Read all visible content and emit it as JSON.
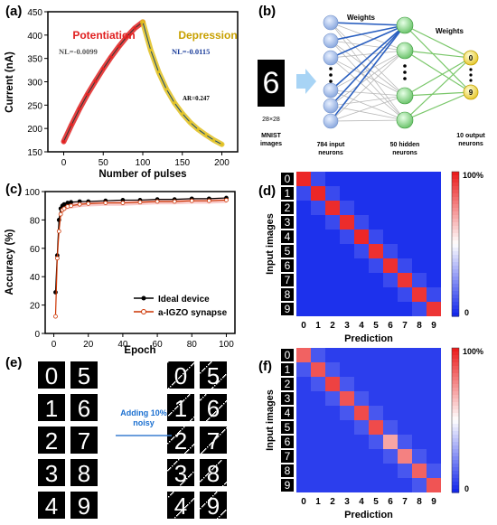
{
  "panels": {
    "a": "(a)",
    "b": "(b)",
    "c": "(c)",
    "d": "(d)",
    "e": "(e)",
    "f": "(f)"
  },
  "chart_data": [
    {
      "id": "a",
      "type": "line",
      "xlabel": "Number of pulses",
      "ylabel": "Current (nA)",
      "xlim": [
        -20,
        220
      ],
      "ylim": [
        150,
        450
      ],
      "xticks": [
        "0",
        "50",
        "100",
        "150",
        "200"
      ],
      "yticks": [
        "150",
        "200",
        "250",
        "300",
        "350",
        "400",
        "450"
      ],
      "annotations": {
        "potentiation": "Potentiation",
        "depression": "Depression",
        "nl_pot": "NL=-0.0099",
        "nl_dep": "NL=-0.0115",
        "ar": "AR=0.247"
      },
      "series": [
        {
          "name": "Potentiation",
          "x": [
            0,
            10,
            20,
            30,
            40,
            50,
            60,
            70,
            80,
            90,
            100
          ],
          "y": [
            172,
            208,
            242,
            273,
            301,
            328,
            353,
            376,
            397,
            415,
            428
          ],
          "color": "#e02020"
        },
        {
          "name": "Depression",
          "x": [
            100,
            110,
            120,
            130,
            140,
            150,
            160,
            170,
            180,
            190,
            200
          ],
          "y": [
            428,
            368,
            321,
            284,
            255,
            232,
            213,
            198,
            186,
            175,
            166
          ],
          "color": "#e0c020"
        }
      ]
    },
    {
      "id": "c",
      "type": "line",
      "xlabel": "Epoch",
      "ylabel": "Accuracy (%)",
      "xlim": [
        -5,
        105
      ],
      "ylim": [
        0,
        100
      ],
      "xticks": [
        "0",
        "20",
        "40",
        "60",
        "80",
        "100"
      ],
      "yticks": [
        "0",
        "20",
        "40",
        "60",
        "80",
        "100"
      ],
      "series": [
        {
          "name": "Ideal device",
          "color": "#000000",
          "x": [
            1,
            2,
            3,
            4,
            5,
            6,
            8,
            10,
            15,
            20,
            30,
            40,
            50,
            60,
            70,
            80,
            90,
            100
          ],
          "y": [
            29,
            55,
            80,
            88,
            90,
            91,
            92,
            92.5,
            93,
            93,
            93.5,
            94,
            94,
            94.5,
            94.5,
            95,
            95,
            95.5
          ]
        },
        {
          "name": "a-IGZO synapse",
          "color": "#cc3300",
          "x": [
            1,
            2,
            3,
            4,
            5,
            6,
            8,
            10,
            15,
            20,
            30,
            40,
            50,
            60,
            70,
            80,
            90,
            100
          ],
          "y": [
            12,
            53,
            72,
            84,
            87,
            88,
            89.5,
            90,
            91,
            91.5,
            92,
            92,
            92.5,
            93,
            93,
            93.5,
            93.5,
            94
          ]
        }
      ]
    },
    {
      "id": "d",
      "type": "heatmap",
      "xlabel": "Prediction",
      "ylabel": "Input images",
      "xticks": [
        "0",
        "1",
        "2",
        "3",
        "4",
        "5",
        "6",
        "7",
        "8",
        "9"
      ],
      "yticks": [
        "0",
        "1",
        "2",
        "3",
        "4",
        "5",
        "6",
        "7",
        "8",
        "9"
      ],
      "colorbar": {
        "max": "100%",
        "min": "0"
      },
      "diagonal": [
        0.98,
        0.98,
        0.97,
        0.97,
        0.98,
        0.96,
        0.96,
        0.95,
        0.95,
        0.95
      ],
      "offdiag": 0.02
    },
    {
      "id": "f",
      "type": "heatmap",
      "xlabel": "Prediction",
      "ylabel": "Input images",
      "xticks": [
        "0",
        "1",
        "2",
        "3",
        "4",
        "5",
        "6",
        "7",
        "8",
        "9"
      ],
      "yticks": [
        "0",
        "1",
        "2",
        "3",
        "4",
        "5",
        "6",
        "7",
        "8",
        "9"
      ],
      "colorbar": {
        "max": "100%",
        "min": "0"
      },
      "diagonal": [
        0.85,
        0.88,
        0.92,
        0.88,
        0.9,
        0.9,
        0.7,
        0.78,
        0.85,
        0.88
      ],
      "offdiag": 0.05
    }
  ],
  "network": {
    "weights1": "Weights",
    "weights2": "Weights",
    "image_size": "28×28",
    "image_caption": "MNIST images",
    "input_label": "784 input neurons",
    "hidden_label": "50 hidden neurons",
    "output_label": "10 output neurons",
    "out_top": "0",
    "out_bottom": "9",
    "digit": "6"
  },
  "noise": {
    "arrow_label": "Adding 10% noisy",
    "digits": [
      "0",
      "5",
      "1",
      "6",
      "2",
      "7",
      "3",
      "8",
      "4",
      "9"
    ]
  }
}
